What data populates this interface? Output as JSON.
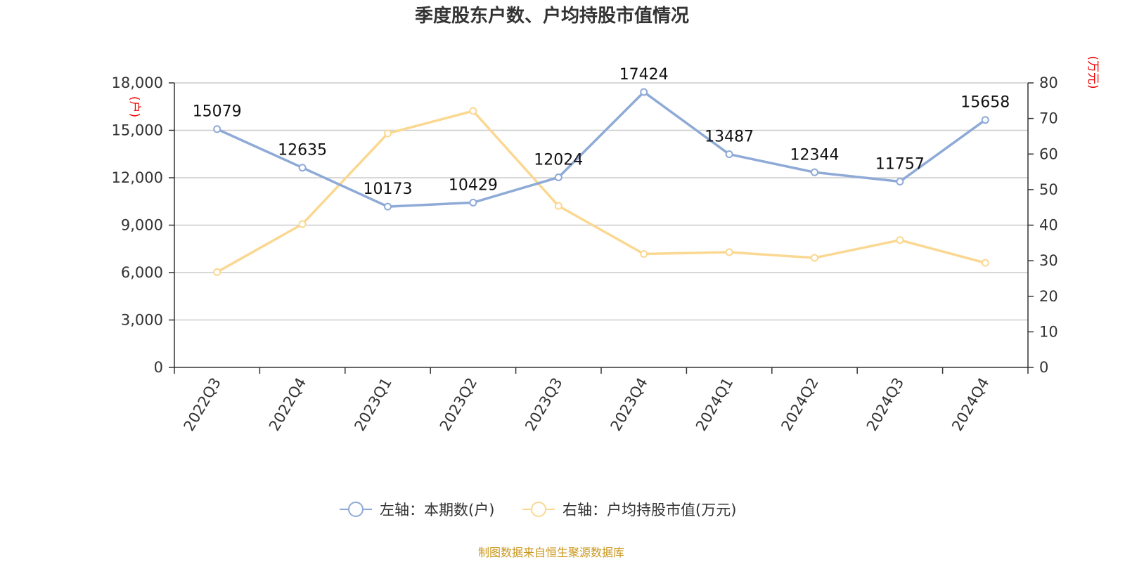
{
  "chart_data": {
    "type": "line",
    "title": "季度股东户数、户均持股市值情况",
    "categories": [
      "2022Q3",
      "2022Q4",
      "2023Q1",
      "2023Q2",
      "2023Q3",
      "2023Q4",
      "2024Q1",
      "2024Q2",
      "2024Q3",
      "2024Q4"
    ],
    "left_axis": {
      "unit": "(户)",
      "ylim": [
        0,
        18000
      ],
      "ticks": [
        "0",
        "3,000",
        "6,000",
        "9,000",
        "12,000",
        "15,000",
        "18,000"
      ]
    },
    "right_axis": {
      "unit": "(万元)",
      "ylim": [
        0,
        80
      ],
      "ticks": [
        "0",
        "10",
        "20",
        "30",
        "40",
        "50",
        "60",
        "70",
        "80"
      ]
    },
    "series": [
      {
        "name": "左轴：本期数(户)",
        "axis": "left",
        "color": "#8eaad6",
        "values": [
          15079,
          12635,
          10173,
          10429,
          12024,
          17424,
          13487,
          12344,
          11757,
          15658
        ],
        "labels": [
          "15079",
          "12635",
          "10173",
          "10429",
          "12024",
          "17424",
          "13487",
          "12344",
          "11757",
          "15658"
        ]
      },
      {
        "name": "右轴：户均持股市值(万元)",
        "axis": "right",
        "color": "#fbd891",
        "values": [
          26.8,
          40.3,
          65.8,
          72.1,
          45.4,
          31.9,
          32.4,
          30.8,
          35.8,
          29.4
        ]
      }
    ],
    "grid": true,
    "legend": "bottom-center",
    "source": "制图数据来自恒生聚源数据库"
  }
}
